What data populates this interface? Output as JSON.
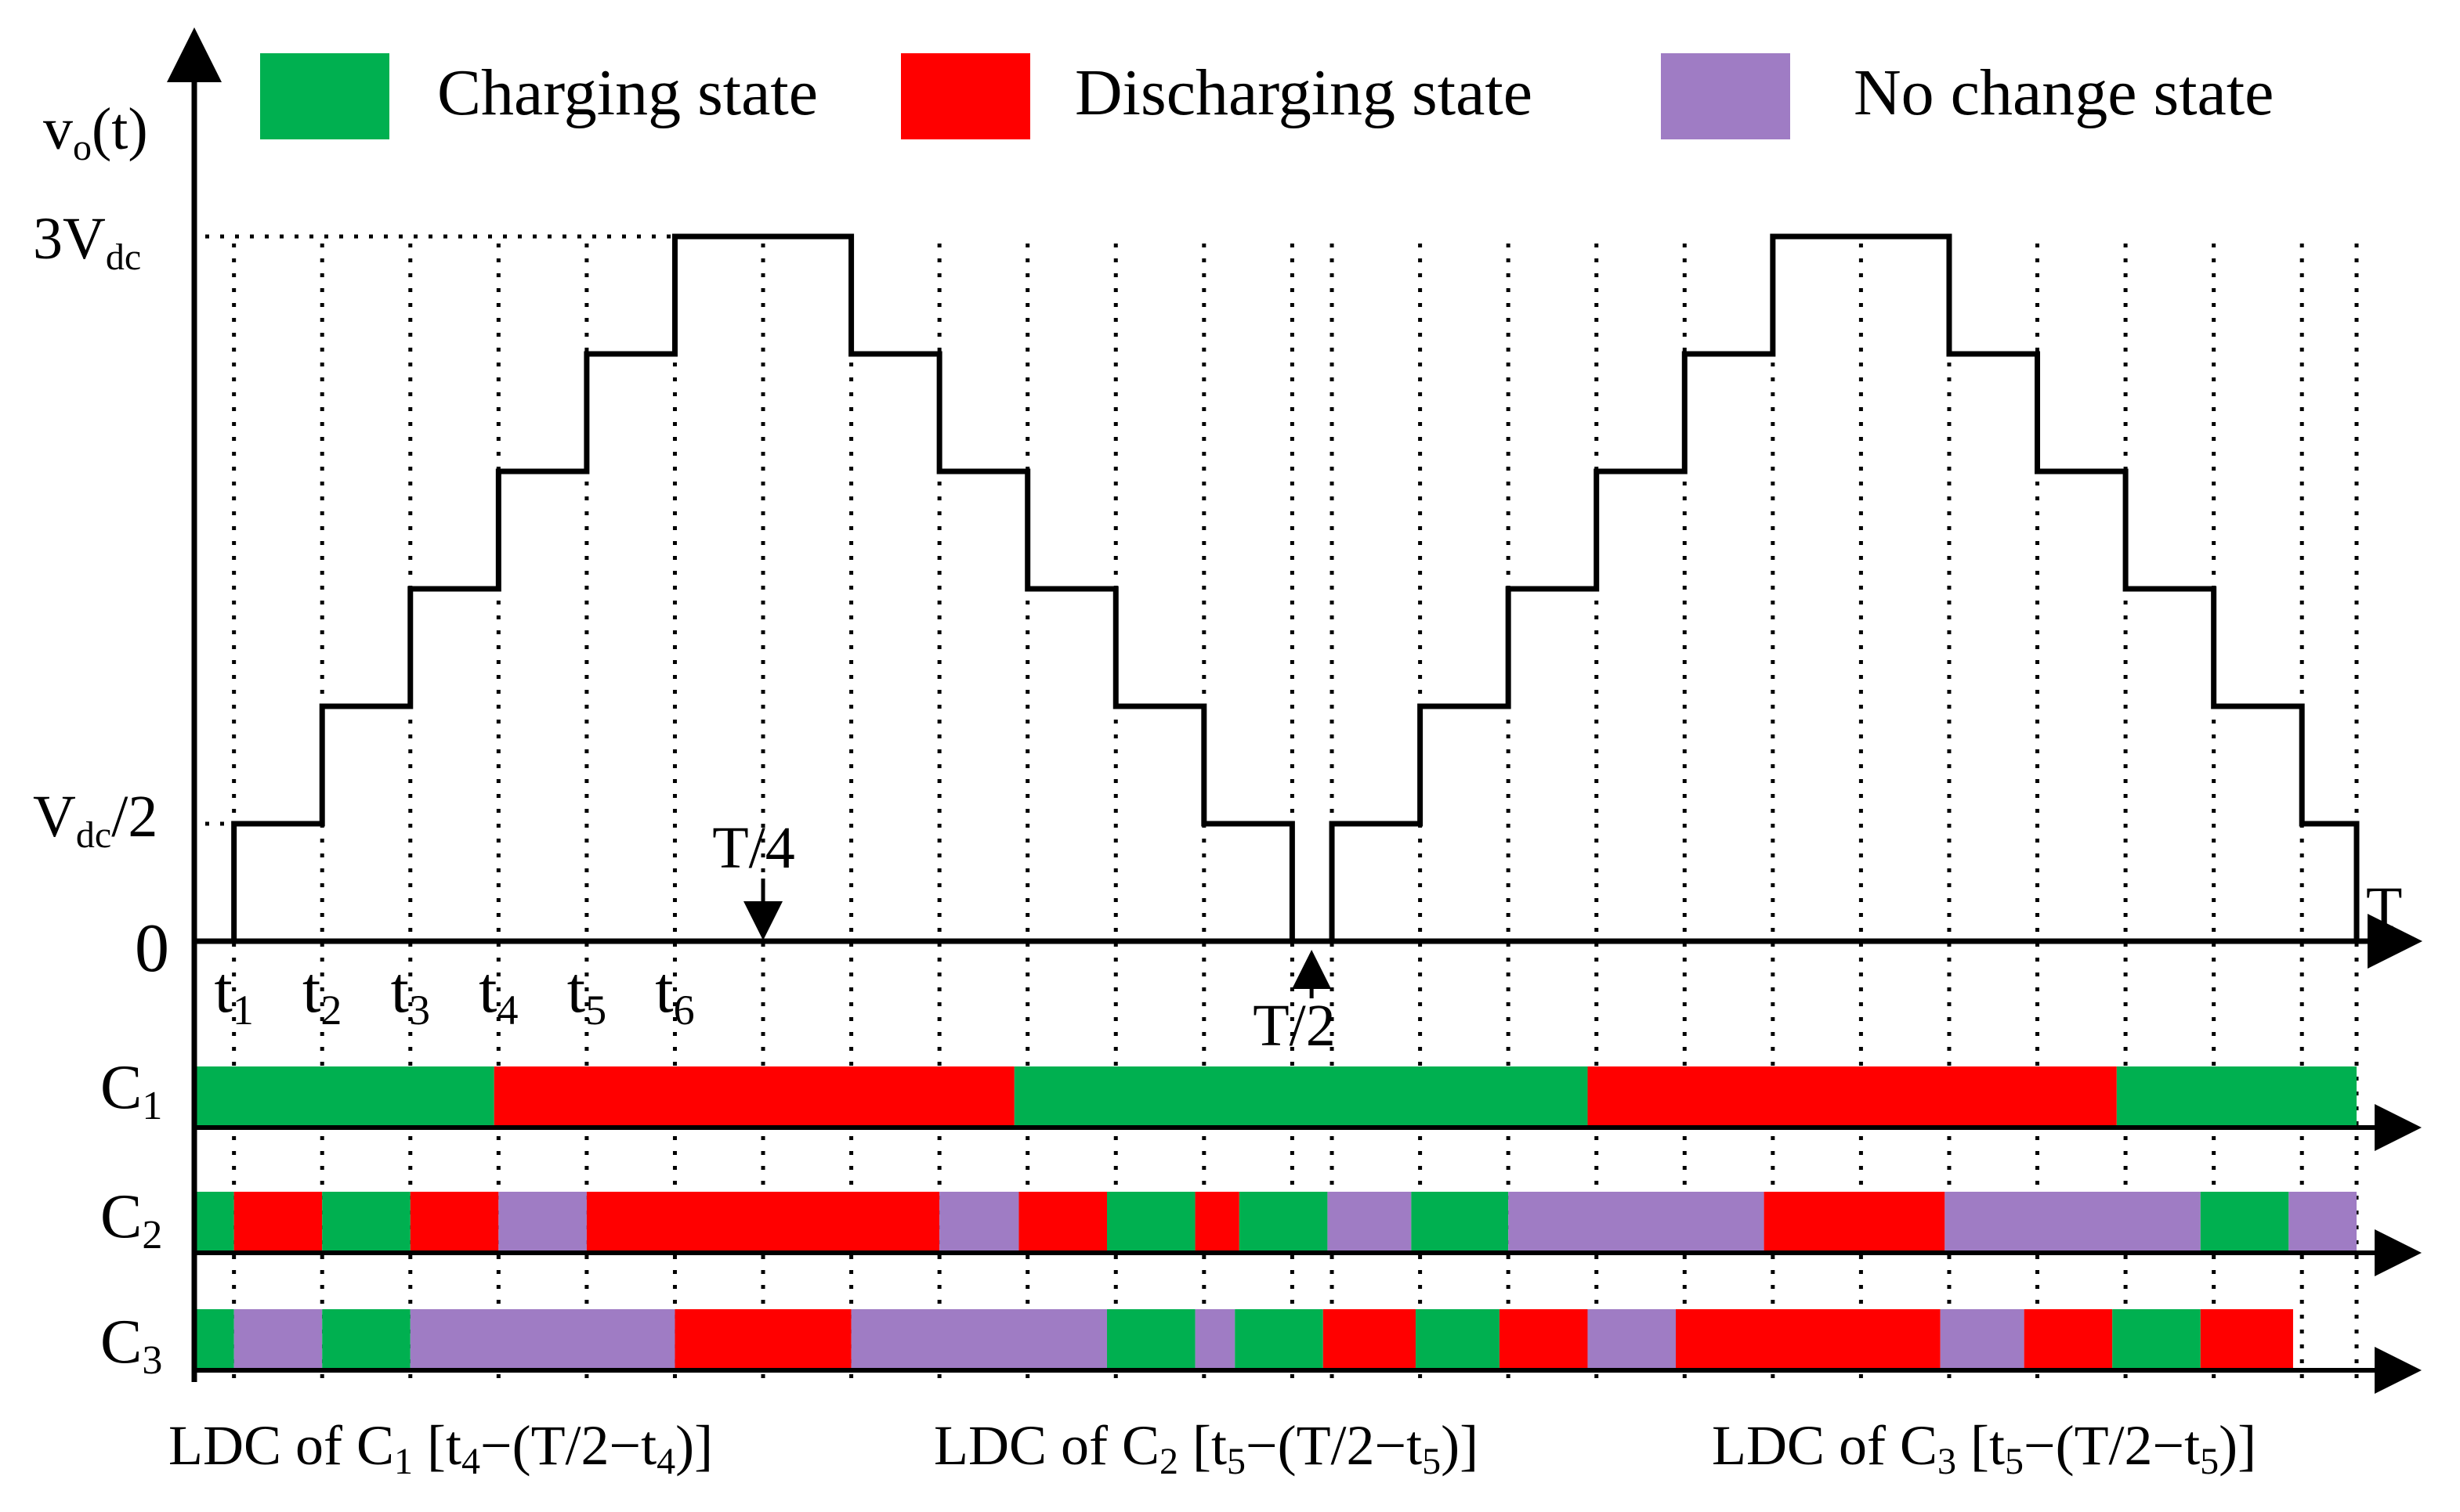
{
  "legend": {
    "charging": "Charging state",
    "discharging": "Discharging state",
    "nochange": "No change state"
  },
  "colors": {
    "charging": "#00b050",
    "discharging": "#ff0000",
    "nochange": "#9f7cc4"
  },
  "axes": {
    "y_main": "v",
    "y_sub": "o",
    "y_tail": "(t)",
    "x": "T",
    "zero": "0"
  },
  "levels": {
    "top_main": "3V",
    "top_sub": "dc",
    "low_main": "V",
    "low_sub": "dc",
    "low_tail": "/2"
  },
  "markers": {
    "quarter": "T/4",
    "half": "T/2"
  },
  "time_labels": [
    {
      "main": "t",
      "sub": "1"
    },
    {
      "main": "t",
      "sub": "2"
    },
    {
      "main": "t",
      "sub": "3"
    },
    {
      "main": "t",
      "sub": "4"
    },
    {
      "main": "t",
      "sub": "5"
    },
    {
      "main": "t",
      "sub": "6"
    }
  ],
  "rows": [
    {
      "main": "C",
      "sub": "1",
      "segments": [
        {
          "from": 0,
          "to": 3.4,
          "state": "charging"
        },
        {
          "from": 3.4,
          "to": 9.3,
          "state": "discharging"
        },
        {
          "from": 9.3,
          "to": 15.8,
          "state": "charging"
        },
        {
          "from": 15.8,
          "to": 21.8,
          "state": "discharging"
        },
        {
          "from": 21.8,
          "to": 24.52,
          "state": "charging"
        }
      ]
    },
    {
      "main": "C",
      "sub": "2",
      "segments": [
        {
          "from": 0,
          "to": 0.45,
          "state": "charging"
        },
        {
          "from": 0.45,
          "to": 1.45,
          "state": "discharging"
        },
        {
          "from": 1.45,
          "to": 2.45,
          "state": "charging"
        },
        {
          "from": 2.45,
          "to": 3.45,
          "state": "discharging"
        },
        {
          "from": 3.45,
          "to": 4.45,
          "state": "nochange"
        },
        {
          "from": 4.45,
          "to": 8.45,
          "state": "discharging"
        },
        {
          "from": 8.45,
          "to": 9.35,
          "state": "nochange"
        },
        {
          "from": 9.35,
          "to": 10.35,
          "state": "discharging"
        },
        {
          "from": 10.35,
          "to": 11.35,
          "state": "charging"
        },
        {
          "from": 11.35,
          "to": 11.85,
          "state": "discharging"
        },
        {
          "from": 11.85,
          "to": 12.85,
          "state": "charging"
        },
        {
          "from": 12.85,
          "to": 13.8,
          "state": "nochange"
        },
        {
          "from": 13.8,
          "to": 14.9,
          "state": "charging"
        },
        {
          "from": 14.9,
          "to": 17.8,
          "state": "nochange"
        },
        {
          "from": 17.8,
          "to": 19.85,
          "state": "discharging"
        },
        {
          "from": 19.85,
          "to": 22.75,
          "state": "nochange"
        },
        {
          "from": 22.75,
          "to": 23.75,
          "state": "charging"
        },
        {
          "from": 23.75,
          "to": 24.52,
          "state": "nochange"
        }
      ]
    },
    {
      "main": "C",
      "sub": "3",
      "segments": [
        {
          "from": 0,
          "to": 0.45,
          "state": "charging"
        },
        {
          "from": 0.45,
          "to": 1.45,
          "state": "nochange"
        },
        {
          "from": 1.45,
          "to": 2.45,
          "state": "charging"
        },
        {
          "from": 2.45,
          "to": 5.45,
          "state": "nochange"
        },
        {
          "from": 5.45,
          "to": 7.45,
          "state": "discharging"
        },
        {
          "from": 7.45,
          "to": 10.35,
          "state": "nochange"
        },
        {
          "from": 10.35,
          "to": 11.35,
          "state": "charging"
        },
        {
          "from": 11.35,
          "to": 11.8,
          "state": "nochange"
        },
        {
          "from": 11.8,
          "to": 12.8,
          "state": "charging"
        },
        {
          "from": 12.8,
          "to": 13.85,
          "state": "discharging"
        },
        {
          "from": 13.85,
          "to": 14.8,
          "state": "charging"
        },
        {
          "from": 14.8,
          "to": 15.8,
          "state": "discharging"
        },
        {
          "from": 15.8,
          "to": 16.8,
          "state": "nochange"
        },
        {
          "from": 16.8,
          "to": 19.8,
          "state": "discharging"
        },
        {
          "from": 19.8,
          "to": 20.75,
          "state": "nochange"
        },
        {
          "from": 20.75,
          "to": 21.75,
          "state": "discharging"
        },
        {
          "from": 21.75,
          "to": 22.75,
          "state": "charging"
        },
        {
          "from": 22.75,
          "to": 23.8,
          "state": "discharging"
        }
      ]
    }
  ],
  "captions": [
    {
      "lead": "LDC of C",
      "cap": "1",
      "open": " [t",
      "t1": "4",
      "mid": "−(T/2−t",
      "t2": "4",
      "close": ")]"
    },
    {
      "lead": "LDC of C",
      "cap": "2",
      "open": " [t",
      "t1": "5",
      "mid": "−(T/2−t",
      "t2": "5",
      "close": ")]"
    },
    {
      "lead": "LDC of C",
      "cap": "3",
      "open": " [t",
      "t1": "5",
      "mid": "−(T/2−t",
      "t2": "5",
      "close": ")]"
    }
  ],
  "waveform": {
    "x_scale": [
      0,
      24.52
    ],
    "y_scale": [
      0,
      6
    ],
    "points": [
      [
        0,
        0
      ],
      [
        0.45,
        0
      ],
      [
        0.45,
        1
      ],
      [
        1.45,
        1
      ],
      [
        1.45,
        2
      ],
      [
        2.45,
        2
      ],
      [
        2.45,
        3
      ],
      [
        3.45,
        3
      ],
      [
        3.45,
        4
      ],
      [
        4.45,
        4
      ],
      [
        4.45,
        5
      ],
      [
        5.45,
        5
      ],
      [
        5.45,
        6
      ],
      [
        7.45,
        6
      ],
      [
        7.45,
        5
      ],
      [
        8.45,
        5
      ],
      [
        8.45,
        4
      ],
      [
        9.45,
        4
      ],
      [
        9.45,
        3
      ],
      [
        10.45,
        3
      ],
      [
        10.45,
        2
      ],
      [
        11.45,
        2
      ],
      [
        11.45,
        1
      ],
      [
        12.45,
        1
      ],
      [
        12.45,
        0
      ],
      [
        12.9,
        0
      ],
      [
        12.9,
        1
      ],
      [
        13.9,
        1
      ],
      [
        13.9,
        2
      ],
      [
        14.9,
        2
      ],
      [
        14.9,
        3
      ],
      [
        15.9,
        3
      ],
      [
        15.9,
        4
      ],
      [
        16.9,
        4
      ],
      [
        16.9,
        5
      ],
      [
        17.9,
        5
      ],
      [
        17.9,
        6
      ],
      [
        19.9,
        6
      ],
      [
        19.9,
        5
      ],
      [
        20.9,
        5
      ],
      [
        20.9,
        4
      ],
      [
        21.9,
        4
      ],
      [
        21.9,
        3
      ],
      [
        22.9,
        3
      ],
      [
        22.9,
        2
      ],
      [
        23.9,
        2
      ],
      [
        23.9,
        1
      ],
      [
        24.52,
        1
      ],
      [
        24.52,
        0
      ]
    ],
    "dotted_times": [
      0.45,
      1.45,
      2.45,
      3.45,
      4.45,
      5.45,
      6.45,
      7.45,
      8.45,
      9.45,
      10.45,
      11.45,
      12.45,
      12.9,
      13.9,
      14.9,
      15.9,
      16.9,
      17.9,
      18.9,
      19.9,
      20.9,
      21.9,
      22.9,
      23.9,
      24.52
    ],
    "quarter_time": 6.45,
    "half_time": 12.67
  }
}
